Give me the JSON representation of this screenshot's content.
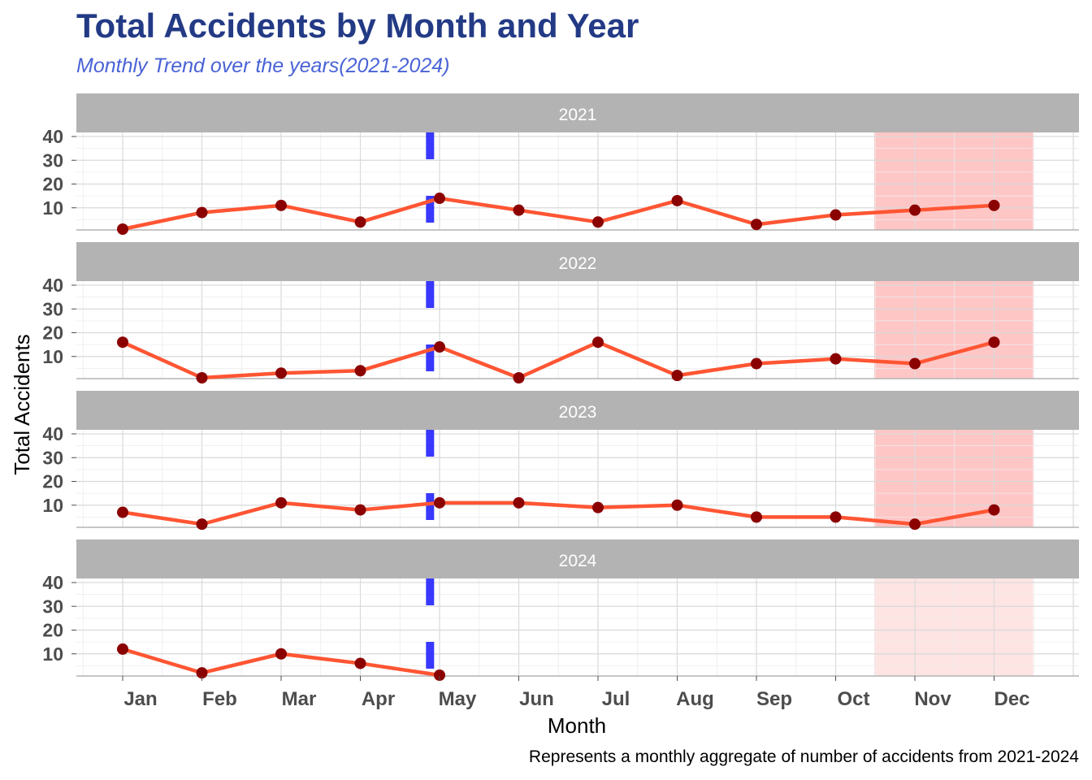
{
  "chart_data": {
    "type": "line",
    "title": "Total Accidents by Month and Year",
    "subtitle": "Monthly Trend over the years(2021-2024)",
    "caption": "Represents a monthly aggregate of number of accidents from 2021-2024",
    "xlabel": "Month",
    "ylabel": "Total Accidents",
    "categories": [
      "Jan",
      "Feb",
      "Mar",
      "Apr",
      "May",
      "Jun",
      "Jul",
      "Aug",
      "Sep",
      "Oct",
      "Nov",
      "Dec"
    ],
    "yticks": [
      10,
      20,
      30,
      40
    ],
    "ylim": [
      0,
      40
    ],
    "grid": true,
    "line_color": "#ff5533",
    "point_color": "#8b0000",
    "reference_line_color": "#2222ff",
    "highlight_color": "#ffb3b3",
    "highlight_months": [
      "Nov",
      "Dec"
    ],
    "panels": [
      {
        "name": "2021",
        "values": [
          1,
          8,
          11,
          4,
          14,
          9,
          4,
          13,
          3,
          7,
          9,
          11
        ]
      },
      {
        "name": "2022",
        "values": [
          16,
          0,
          3,
          4,
          14,
          1,
          16,
          2,
          7,
          9,
          7,
          16
        ]
      },
      {
        "name": "2023",
        "values": [
          7,
          2,
          11,
          8,
          11,
          11,
          9,
          10,
          5,
          5,
          2,
          8
        ]
      },
      {
        "name": "2024",
        "values": [
          12,
          2,
          10,
          6,
          0
        ]
      }
    ]
  }
}
